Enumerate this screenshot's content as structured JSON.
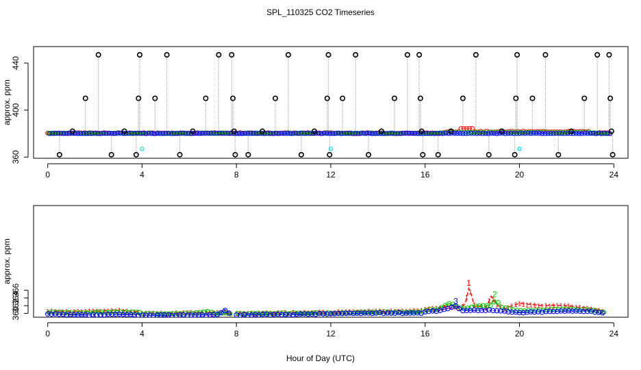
{
  "title": "SPL_110325  CO2 Timeseries",
  "xlabel": "Hour of Day (UTC)",
  "colors": {
    "black": "#000000",
    "red": "#ff0000",
    "green": "#00cd00",
    "blue": "#0000ff",
    "cyan": "#00e5ee",
    "grey": "#aaaaaa"
  },
  "chart_data": [
    {
      "type": "scatter",
      "title": "SPL_110325  CO2 Timeseries",
      "ylabel": "approx. ppm",
      "xlabel": "",
      "xlim": [
        -0.6,
        24.6
      ],
      "ylim": [
        359.0,
        454.0
      ],
      "x_ticks": [
        0,
        4,
        8,
        12,
        16,
        20,
        24
      ],
      "y_ticks": [
        360,
        400,
        440
      ],
      "x_tick_labels": [
        "0",
        "4",
        "8",
        "12",
        "16",
        "20",
        "24"
      ],
      "y_tick_labels": [
        "360",
        "400",
        "440"
      ],
      "baseline": 380,
      "black_spikes": [
        {
          "x": 0.5,
          "y": 362
        },
        {
          "x": 1.05,
          "y": 382
        },
        {
          "x": 1.6,
          "y": 410
        },
        {
          "x": 2.15,
          "y": 447
        },
        {
          "x": 2.7,
          "y": 362
        },
        {
          "x": 3.25,
          "y": 382
        },
        {
          "x": 3.75,
          "y": 362
        },
        {
          "x": 3.85,
          "y": 410
        },
        {
          "x": 3.9,
          "y": 447
        },
        {
          "x": 4.55,
          "y": 410
        },
        {
          "x": 5.05,
          "y": 447
        },
        {
          "x": 5.6,
          "y": 362
        },
        {
          "x": 6.15,
          "y": 382
        },
        {
          "x": 6.7,
          "y": 410
        },
        {
          "x": 7.25,
          "y": 447
        },
        {
          "x": 7.8,
          "y": 447
        },
        {
          "x": 7.85,
          "y": 410
        },
        {
          "x": 7.9,
          "y": 382
        },
        {
          "x": 7.95,
          "y": 362
        },
        {
          "x": 8.5,
          "y": 362
        },
        {
          "x": 9.1,
          "y": 382
        },
        {
          "x": 9.65,
          "y": 410
        },
        {
          "x": 10.2,
          "y": 447
        },
        {
          "x": 10.75,
          "y": 362
        },
        {
          "x": 11.3,
          "y": 382
        },
        {
          "x": 11.85,
          "y": 410
        },
        {
          "x": 11.9,
          "y": 447
        },
        {
          "x": 11.95,
          "y": 362
        },
        {
          "x": 12.5,
          "y": 410
        },
        {
          "x": 13.05,
          "y": 447
        },
        {
          "x": 13.6,
          "y": 362
        },
        {
          "x": 14.15,
          "y": 382
        },
        {
          "x": 14.7,
          "y": 410
        },
        {
          "x": 15.25,
          "y": 447
        },
        {
          "x": 15.75,
          "y": 447
        },
        {
          "x": 15.8,
          "y": 410
        },
        {
          "x": 15.85,
          "y": 382
        },
        {
          "x": 15.9,
          "y": 362
        },
        {
          "x": 16.55,
          "y": 362
        },
        {
          "x": 17.1,
          "y": 382
        },
        {
          "x": 17.6,
          "y": 410
        },
        {
          "x": 18.15,
          "y": 447
        },
        {
          "x": 18.7,
          "y": 362
        },
        {
          "x": 19.25,
          "y": 382
        },
        {
          "x": 19.8,
          "y": 362
        },
        {
          "x": 19.85,
          "y": 410
        },
        {
          "x": 19.9,
          "y": 447
        },
        {
          "x": 20.55,
          "y": 410
        },
        {
          "x": 21.1,
          "y": 447
        },
        {
          "x": 21.65,
          "y": 362
        },
        {
          "x": 22.2,
          "y": 382
        },
        {
          "x": 22.75,
          "y": 410
        },
        {
          "x": 23.3,
          "y": 447
        },
        {
          "x": 23.8,
          "y": 447
        },
        {
          "x": 23.85,
          "y": 410
        },
        {
          "x": 23.9,
          "y": 382
        },
        {
          "x": 23.95,
          "y": 362
        }
      ],
      "cyan_points": [
        {
          "x": 4.0,
          "y": 367
        },
        {
          "x": 12.0,
          "y": 367
        },
        {
          "x": 20.0,
          "y": 367
        }
      ],
      "series_note": "dense low-level series (blue, green, red) at about 380-388 ppm"
    },
    {
      "type": "line",
      "ylabel": "approx. ppm",
      "xlabel": "Hour of Day (UTC)",
      "xlim": [
        -0.6,
        24.6
      ],
      "ylim": [
        359.0,
        388.0
      ],
      "x_ticks": [
        0,
        4,
        8,
        12,
        16,
        20,
        24
      ],
      "y_ticks": [
        360,
        362,
        364,
        366
      ],
      "x_tick_labels": [
        "0",
        "4",
        "8",
        "12",
        "16",
        "20",
        "24"
      ],
      "y_tick_labels": [
        "360",
        "362",
        "364",
        "366"
      ],
      "x_gaps": [
        [
          3.9,
          4.0
        ],
        [
          7.8,
          8.0
        ],
        [
          11.9,
          12.0
        ],
        [
          15.9,
          16.0
        ]
      ],
      "series": [
        {
          "name": "1",
          "color": "red",
          "marker": "1",
          "x": [
            0.0,
            1.0,
            2.0,
            3.0,
            3.9,
            4.0,
            5.0,
            6.0,
            7.0,
            7.8,
            8.0,
            10.0,
            11.9,
            12.0,
            13.0,
            14.0,
            15.0,
            15.9,
            16.0,
            16.5,
            17.0,
            17.5,
            17.7,
            17.85,
            17.95,
            18.1,
            18.3,
            18.6,
            18.8,
            18.95,
            19.1,
            19.4,
            19.6,
            20.0,
            20.5,
            21.0,
            21.5,
            22.0,
            22.5,
            23.0,
            23.6
          ],
          "values": [
            360.6,
            360.5,
            360.6,
            360.8,
            360.4,
            360.1,
            360.1,
            360.2,
            360.3,
            360.1,
            360.1,
            360.2,
            360.4,
            360.3,
            360.5,
            360.6,
            360.6,
            360.8,
            361.2,
            361.4,
            362.0,
            361.6,
            362.5,
            366.5,
            365.0,
            361.8,
            361.9,
            361.7,
            364.5,
            363.0,
            362.0,
            361.3,
            361.8,
            362.6,
            362.3,
            362.0,
            362.1,
            362.0,
            361.6,
            361.3,
            360.5
          ]
        },
        {
          "name": "2",
          "color": "green",
          "marker": "2",
          "x": [
            0.0,
            1.0,
            2.0,
            3.0,
            3.9,
            4.0,
            5.0,
            6.0,
            6.7,
            7.0,
            7.8,
            8.0,
            10.0,
            11.9,
            12.0,
            13.0,
            14.0,
            15.0,
            15.9,
            16.0,
            16.5,
            17.0,
            17.5,
            17.8,
            18.0,
            18.3,
            18.7,
            18.95,
            19.2,
            19.6,
            20.0,
            21.0,
            22.0,
            23.0,
            23.6
          ],
          "values": [
            360.3,
            360.2,
            360.3,
            360.4,
            360.2,
            359.9,
            359.9,
            360.0,
            360.6,
            360.1,
            359.9,
            359.9,
            360.0,
            360.1,
            360.1,
            360.2,
            360.3,
            360.3,
            360.4,
            360.9,
            361.0,
            362.6,
            361.5,
            361.5,
            361.9,
            362.0,
            361.9,
            363.5,
            361.5,
            361.0,
            360.7,
            360.9,
            361.2,
            360.9,
            360.2
          ]
        },
        {
          "name": "3",
          "color": "blue",
          "marker": "3",
          "x": [
            0.0,
            1.0,
            2.0,
            3.0,
            3.9,
            4.0,
            5.0,
            6.0,
            7.0,
            7.3,
            7.5,
            7.7,
            7.8,
            8.0,
            10.0,
            11.9,
            12.0,
            13.0,
            14.0,
            15.0,
            15.9,
            16.0,
            16.5,
            17.0,
            17.3,
            17.6,
            18.0,
            18.5,
            19.0,
            19.5,
            20.0,
            21.0,
            22.0,
            23.0,
            23.6
          ],
          "values": [
            359.8,
            359.6,
            359.6,
            359.7,
            359.6,
            359.5,
            359.5,
            359.6,
            359.6,
            359.8,
            361.0,
            359.9,
            359.6,
            359.6,
            359.7,
            359.9,
            359.9,
            360.0,
            360.1,
            360.1,
            360.1,
            360.5,
            360.6,
            361.3,
            361.8,
            360.8,
            360.8,
            360.9,
            360.7,
            360.4,
            360.2,
            360.4,
            360.6,
            360.6,
            360.0
          ]
        }
      ]
    }
  ]
}
